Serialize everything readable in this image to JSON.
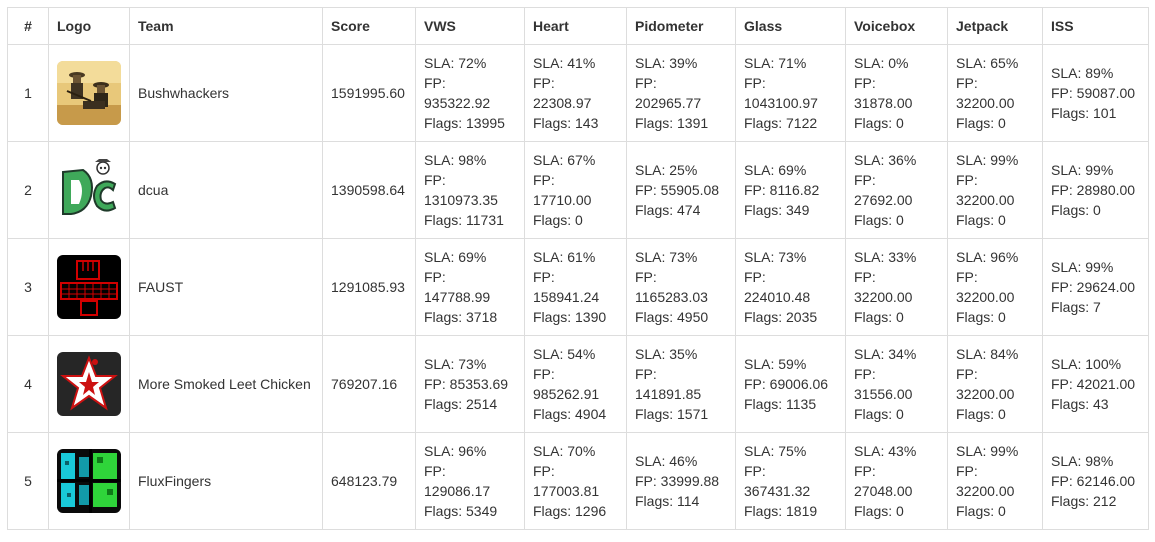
{
  "headers": {
    "rank": "#",
    "logo": "Logo",
    "team": "Team",
    "score": "Score",
    "services": [
      "VWS",
      "Heart",
      "Pidometer",
      "Glass",
      "Voicebox",
      "Jetpack",
      "ISS"
    ]
  },
  "rows": [
    {
      "rank": "1",
      "logo_icon": "cowboys-photo-logo",
      "team": "Bushwhackers",
      "score": "1591995.60",
      "services": [
        [
          "SLA: 72%",
          "FP:",
          "935322.92",
          "Flags: 13995"
        ],
        [
          "SLA: 41%",
          "FP:",
          "22308.97",
          "Flags: 143"
        ],
        [
          "SLA: 39%",
          "FP:",
          "202965.77",
          "Flags: 1391"
        ],
        [
          "SLA: 71%",
          "FP:",
          "1043100.97",
          "Flags: 7122"
        ],
        [
          "SLA: 0%",
          "FP:",
          "31878.00",
          "Flags: 0"
        ],
        [
          "SLA: 65%",
          "FP:",
          "32200.00",
          "Flags: 0"
        ],
        [
          "SLA: 89%",
          "FP: 59087.00",
          "Flags: 101"
        ]
      ]
    },
    {
      "rank": "2",
      "logo_icon": "dc-skull-logo",
      "team": "dcua",
      "score": "1390598.64",
      "services": [
        [
          "SLA: 98%",
          "FP:",
          "1310973.35",
          "Flags: 11731"
        ],
        [
          "SLA: 67%",
          "FP:",
          "17710.00",
          "Flags: 0"
        ],
        [
          "SLA: 25%",
          "FP: 55905.08",
          "Flags: 474"
        ],
        [
          "SLA: 69%",
          "FP: 8116.82",
          "Flags: 349"
        ],
        [
          "SLA: 36%",
          "FP:",
          "27692.00",
          "Flags: 0"
        ],
        [
          "SLA: 99%",
          "FP:",
          "32200.00",
          "Flags: 0"
        ],
        [
          "SLA: 99%",
          "FP: 28980.00",
          "Flags: 0"
        ]
      ]
    },
    {
      "rank": "3",
      "logo_icon": "red-fist-keyboard-logo",
      "team": "FAUST",
      "score": "1291085.93",
      "services": [
        [
          "SLA: 69%",
          "FP:",
          "147788.99",
          "Flags: 3718"
        ],
        [
          "SLA: 61%",
          "FP:",
          "158941.24",
          "Flags: 1390"
        ],
        [
          "SLA: 73%",
          "FP:",
          "1165283.03",
          "Flags: 4950"
        ],
        [
          "SLA: 73%",
          "FP:",
          "224010.48",
          "Flags: 2035"
        ],
        [
          "SLA: 33%",
          "FP:",
          "32200.00",
          "Flags: 0"
        ],
        [
          "SLA: 96%",
          "FP:",
          "32200.00",
          "Flags: 0"
        ],
        [
          "SLA: 99%",
          "FP: 29624.00",
          "Flags: 7"
        ]
      ]
    },
    {
      "rank": "4",
      "logo_icon": "star-chicken-logo",
      "team": "More Smoked Leet Chicken",
      "score": "769207.16",
      "services": [
        [
          "SLA: 73%",
          "FP: 85353.69",
          "Flags: 2514"
        ],
        [
          "SLA: 54%",
          "FP:",
          "985262.91",
          "Flags: 4904"
        ],
        [
          "SLA: 35%",
          "FP:",
          "141891.85",
          "Flags: 1571"
        ],
        [
          "SLA: 59%",
          "FP: 69006.06",
          "Flags: 1135"
        ],
        [
          "SLA: 34%",
          "FP:",
          "31556.00",
          "Flags: 0"
        ],
        [
          "SLA: 84%",
          "FP:",
          "32200.00",
          "Flags: 0"
        ],
        [
          "SLA: 100%",
          "FP: 42021.00",
          "Flags: 43"
        ]
      ]
    },
    {
      "rank": "5",
      "logo_icon": "pixel-green-cyan-logo",
      "team": "FluxFingers",
      "score": "648123.79",
      "services": [
        [
          "SLA: 96%",
          "FP:",
          "129086.17",
          "Flags: 5349"
        ],
        [
          "SLA: 70%",
          "FP:",
          "177003.81",
          "Flags: 1296"
        ],
        [
          "SLA: 46%",
          "FP: 33999.88",
          "Flags: 114"
        ],
        [
          "SLA: 75%",
          "FP:",
          "367431.32",
          "Flags: 1819"
        ],
        [
          "SLA: 43%",
          "FP:",
          "27048.00",
          "Flags: 0"
        ],
        [
          "SLA: 99%",
          "FP:",
          "32200.00",
          "Flags: 0"
        ],
        [
          "SLA: 98%",
          "FP: 62146.00",
          "Flags: 212"
        ]
      ]
    }
  ],
  "colors": {
    "border": "#dddddd",
    "text": "#333333",
    "faust_red": "#d10000",
    "chicken_red": "#cc1111",
    "dcua_green": "#3fa95a",
    "flux_green": "#2fd43a",
    "flux_cyan": "#19c9d8"
  }
}
